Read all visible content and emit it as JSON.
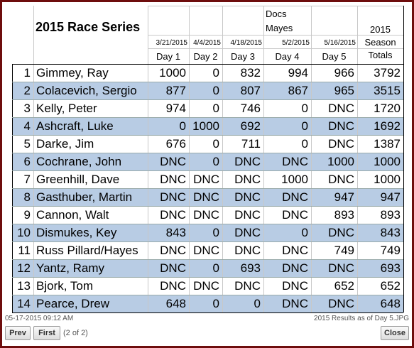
{
  "header": {
    "title": "2015 Race Series",
    "note_lines": [
      "Docs",
      "Mayes"
    ],
    "totals_header": [
      "2015",
      "Season",
      "Totals"
    ],
    "dates": [
      "3/21/2015",
      "4/4/2015",
      "4/18/2015",
      "5/2/2015",
      "5/16/2015"
    ],
    "days": [
      "Day 1",
      "Day 2",
      "Day 3",
      "Day 4",
      "Day 5"
    ]
  },
  "table": {
    "rows": [
      [
        1,
        "Gimmey, Ray",
        1000,
        0,
        832,
        994,
        966,
        3792
      ],
      [
        2,
        "Colacevich, Sergio",
        877,
        0,
        807,
        867,
        965,
        3515
      ],
      [
        3,
        "Kelly, Peter",
        974,
        0,
        746,
        0,
        "DNC",
        1720
      ],
      [
        4,
        "Ashcraft, Luke",
        0,
        1000,
        692,
        0,
        "DNC",
        1692
      ],
      [
        5,
        "Darke, Jim",
        676,
        0,
        711,
        0,
        "DNC",
        1387
      ],
      [
        6,
        "Cochrane, John",
        "DNC",
        0,
        "DNC",
        "DNC",
        1000,
        1000
      ],
      [
        7,
        "Greenhill, Dave",
        "DNC",
        "DNC",
        "DNC",
        1000,
        "DNC",
        1000
      ],
      [
        8,
        "Gasthuber, Martin",
        "DNC",
        "DNC",
        "DNC",
        "DNC",
        947,
        947
      ],
      [
        9,
        "Cannon, Walt",
        "DNC",
        "DNC",
        "DNC",
        "DNC",
        893,
        893
      ],
      [
        10,
        "Dismukes, Key",
        843,
        0,
        "DNC",
        0,
        "DNC",
        843
      ],
      [
        11,
        "Russ Pillard/Hayes",
        "DNC",
        "DNC",
        "DNC",
        "DNC",
        749,
        749
      ],
      [
        12,
        "Yantz, Ramy",
        "DNC",
        0,
        693,
        "DNC",
        "DNC",
        693
      ],
      [
        13,
        "Bjork, Tom",
        "DNC",
        "DNC",
        "DNC",
        "DNC",
        652,
        652
      ],
      [
        14,
        "Pearce, Drew",
        648,
        0,
        0,
        "DNC",
        "DNC",
        648
      ]
    ]
  },
  "footer": {
    "timestamp": "05-17-2015 09:12 AM",
    "filename": "2015 Results as of Day 5.JPG",
    "buttons": {
      "prev": "Prev",
      "first": "First",
      "position": "(2 of 2)",
      "close": "Close"
    }
  }
}
